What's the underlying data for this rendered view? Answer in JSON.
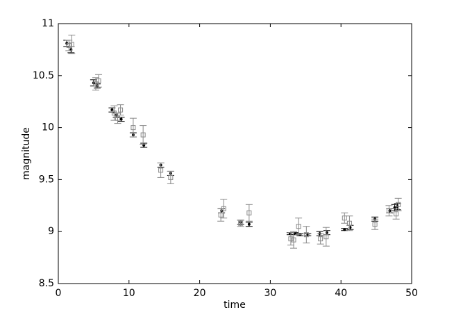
{
  "chart_data": {
    "type": "scatter",
    "xlabel": "time",
    "ylabel": "magnitude",
    "xlim": [
      0,
      50
    ],
    "xticks": [
      0,
      10,
      20,
      30,
      40,
      50
    ],
    "ylim": [
      8.5,
      11
    ],
    "yticks": [
      8.5,
      9,
      9.5,
      10,
      10.5,
      11
    ],
    "grid": false,
    "series": [
      {
        "color": "#000000",
        "marker": "dot",
        "x": [
          1.2,
          1.8,
          5.0,
          5.5,
          7.6,
          8.2,
          8.9,
          10.6,
          12.1,
          14.5,
          15.9,
          23.1,
          25.8,
          27.0,
          32.8,
          33.5,
          34.2,
          35.3,
          37.0,
          38.0,
          40.5,
          41.3,
          44.8,
          46.9,
          47.6,
          48.0
        ],
        "values": [
          10.81,
          10.75,
          10.43,
          10.4,
          10.17,
          10.12,
          10.08,
          9.93,
          9.83,
          9.64,
          9.56,
          9.2,
          9.09,
          9.07,
          8.98,
          8.98,
          8.97,
          8.97,
          8.98,
          8.99,
          9.02,
          9.04,
          9.12,
          9.2,
          9.23,
          9.24
        ],
        "errors": [
          0.03,
          0.03,
          0.03,
          0.02,
          0.02,
          0.02,
          0.02,
          0.02,
          0.02,
          0.02,
          0.02,
          0.02,
          0.02,
          0.02,
          0.01,
          0.01,
          0.01,
          0.01,
          0.02,
          0.02,
          0.01,
          0.02,
          0.02,
          0.02,
          0.03,
          0.03
        ]
      },
      {
        "color": "#888888",
        "marker": "square",
        "x": [
          1.5,
          1.9,
          5.3,
          5.7,
          7.9,
          8.4,
          8.8,
          10.6,
          12.0,
          14.5,
          15.9,
          23.0,
          23.4,
          25.8,
          27.0,
          32.9,
          33.3,
          34.0,
          35.1,
          37.1,
          37.9,
          40.5,
          41.2,
          44.8,
          46.8,
          47.8,
          48.1
        ],
        "values": [
          10.79,
          10.8,
          10.42,
          10.45,
          10.14,
          10.09,
          10.17,
          10.0,
          9.93,
          9.59,
          9.52,
          9.16,
          9.22,
          9.08,
          9.18,
          8.93,
          8.92,
          9.05,
          8.97,
          8.93,
          8.95,
          9.13,
          9.08,
          9.07,
          9.2,
          9.17,
          9.26
        ],
        "errors": [
          0.05,
          0.09,
          0.06,
          0.06,
          0.07,
          0.05,
          0.05,
          0.09,
          0.09,
          0.07,
          0.06,
          0.06,
          0.09,
          0.03,
          0.08,
          0.06,
          0.08,
          0.08,
          0.08,
          0.05,
          0.09,
          0.05,
          0.07,
          0.05,
          0.05,
          0.05,
          0.06
        ]
      }
    ]
  }
}
